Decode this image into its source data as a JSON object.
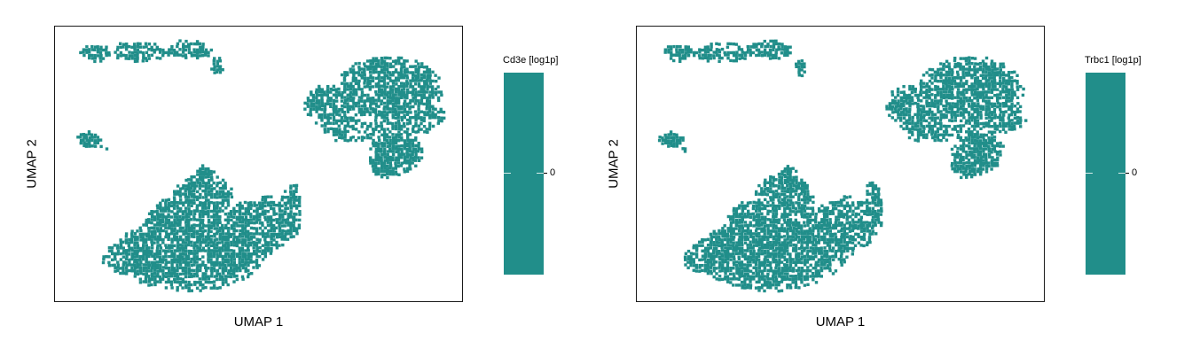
{
  "chart_data": [
    {
      "type": "scatter",
      "xlabel": "UMAP 1",
      "ylabel": "UMAP 2",
      "colorbar": {
        "title": "Cd3e [log1p]",
        "ticks": [
          "0"
        ]
      },
      "color": "#218e8a",
      "grid": false,
      "axis_ticks": false
    },
    {
      "type": "scatter",
      "xlabel": "UMAP 1",
      "ylabel": "UMAP 2",
      "colorbar": {
        "title": "Trbc1 [log1p]",
        "ticks": [
          "0"
        ]
      },
      "color": "#218e8a",
      "grid": false,
      "axis_ticks": false
    }
  ]
}
